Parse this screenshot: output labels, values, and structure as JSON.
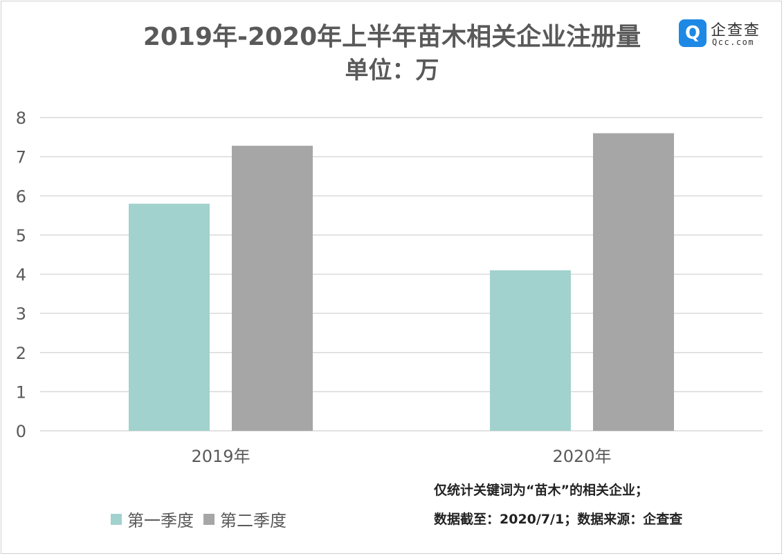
{
  "title_line1": "2019年-2020年上半年苗木相关企业注册量",
  "title_line2": "单位：万",
  "logo": {
    "brand_cn": "企查查",
    "brand_en": "Qcc.com",
    "badge_glyph": "Q"
  },
  "notes": {
    "line1": "仅统计关键词为“苗木”的相关企业；",
    "line2": "数据截至：2020/7/1；数据来源：企查查"
  },
  "chart_data": {
    "type": "bar",
    "categories": [
      "2019年",
      "2020年"
    ],
    "series": [
      {
        "name": "第一季度",
        "values": [
          5.8,
          4.1
        ],
        "color": "#a2d2cd"
      },
      {
        "name": "第二季度",
        "values": [
          7.28,
          7.6
        ],
        "color": "#a6a6a6"
      }
    ],
    "ylim": [
      0,
      8
    ],
    "yticks": [
      0,
      1,
      2,
      3,
      4,
      5,
      6,
      7,
      8
    ],
    "grid": true,
    "legend_position": "bottom-left",
    "gridline_color": "#d9d9d9"
  }
}
